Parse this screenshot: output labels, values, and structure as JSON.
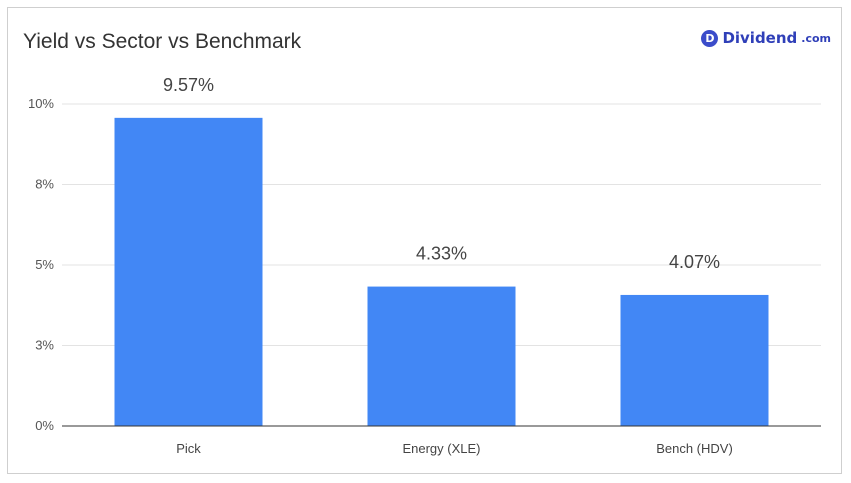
{
  "brand": {
    "badge": "D",
    "name": "Dividend",
    "tld": ".com",
    "color": "#2f3fb8"
  },
  "chart_data": {
    "type": "bar",
    "title": "Yield vs Sector vs Benchmark",
    "categories": [
      "Pick",
      "Energy (XLE)",
      "Bench (HDV)"
    ],
    "values": [
      9.57,
      4.33,
      4.07
    ],
    "data_labels": [
      "9.57%",
      "4.33%",
      "4.07%"
    ],
    "yticks": [
      0,
      2.5,
      5,
      7.5,
      10
    ],
    "ytick_labels": [
      "0%",
      "3%",
      "5%",
      "8%",
      "10%"
    ],
    "ylim": [
      0,
      10
    ],
    "grid": true,
    "bar_color": "#4287f5",
    "xlabel": "",
    "ylabel": ""
  }
}
